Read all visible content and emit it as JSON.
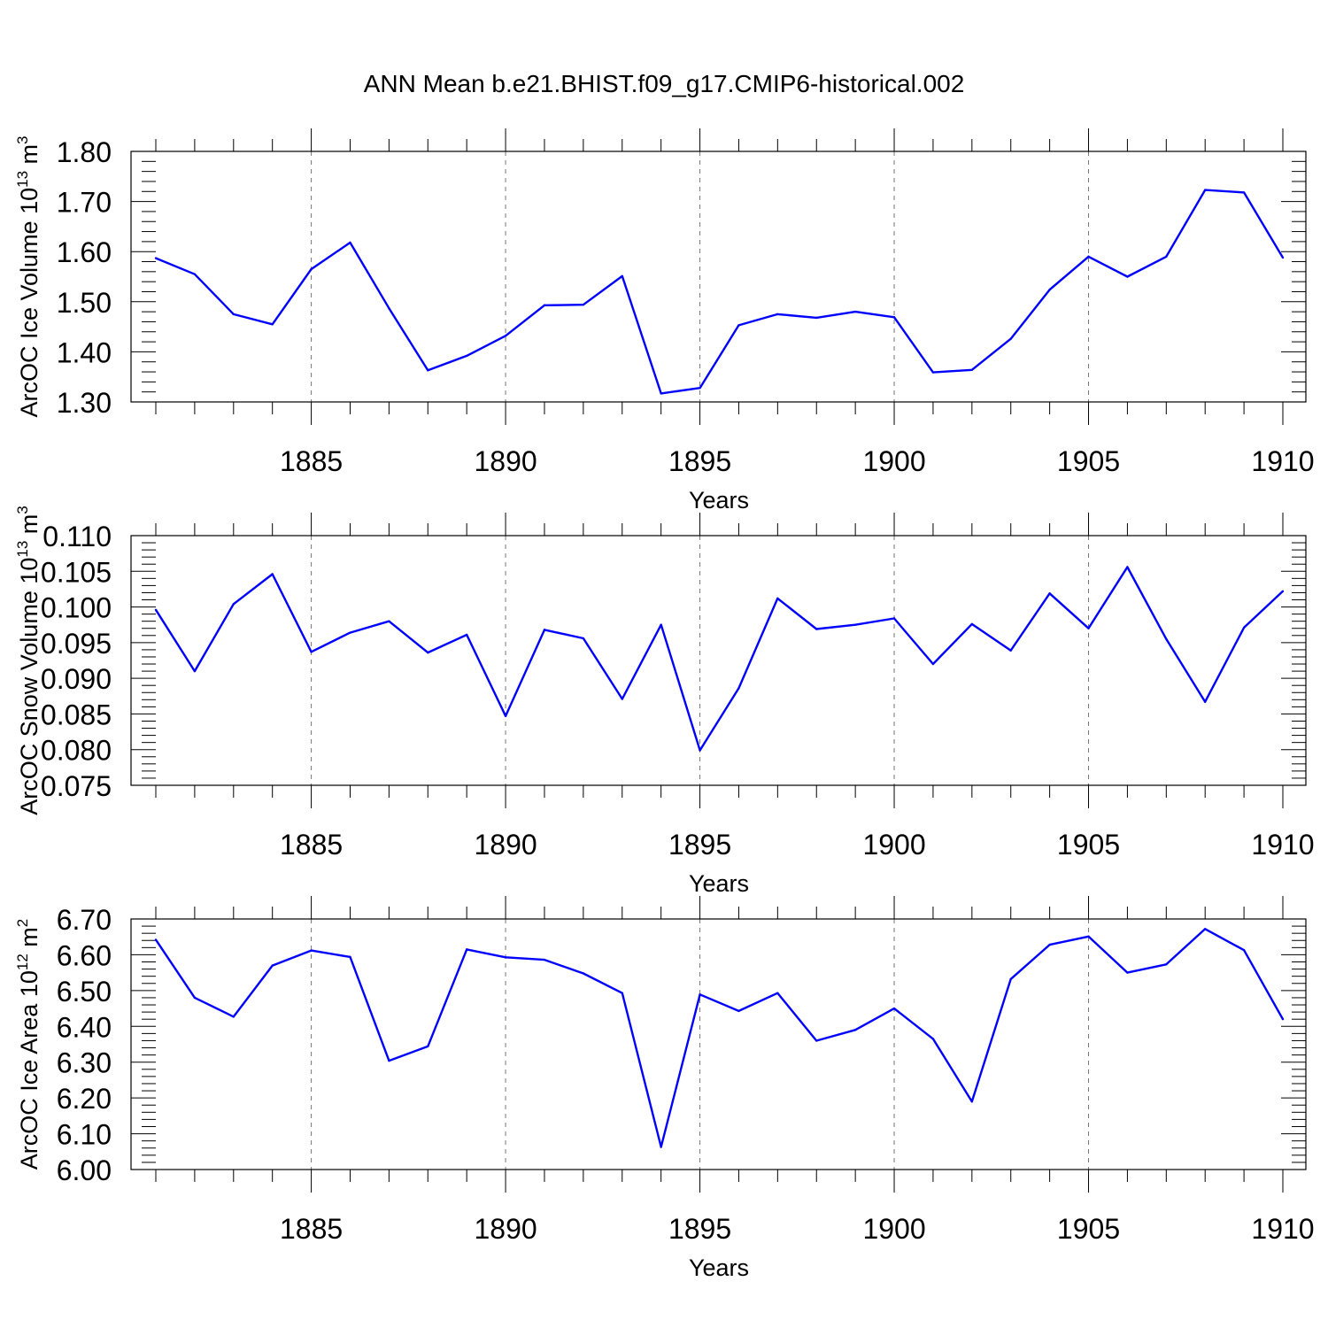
{
  "title": "ANN Mean b.e21.BHIST.f09_g17.CMIP6-historical.002",
  "series_color": "#0000ff",
  "chart_data": [
    {
      "type": "line",
      "title": "",
      "xlabel": "Years",
      "ylabel": {
        "text": "ArcOC Ice Volume 10",
        "sup": "13",
        "unit": " m",
        "unit_sup": "3"
      },
      "x": [
        1881,
        1882,
        1883,
        1884,
        1885,
        1886,
        1887,
        1888,
        1889,
        1890,
        1891,
        1892,
        1893,
        1894,
        1895,
        1896,
        1897,
        1898,
        1899,
        1900,
        1901,
        1902,
        1903,
        1904,
        1905,
        1906,
        1907,
        1908,
        1909,
        1910
      ],
      "values": [
        1.587,
        1.555,
        1.475,
        1.455,
        1.565,
        1.618,
        1.487,
        1.363,
        1.392,
        1.432,
        1.493,
        1.494,
        1.551,
        1.317,
        1.328,
        1.453,
        1.475,
        1.468,
        1.48,
        1.469,
        1.359,
        1.364,
        1.426,
        1.524,
        1.59,
        1.55,
        1.59,
        1.723,
        1.718,
        1.588
      ],
      "xlim": [
        1881,
        1910
      ],
      "ylim": [
        1.3,
        1.8
      ],
      "x_ticks": [
        "1885",
        "1890",
        "1895",
        "1900",
        "1905",
        "1910"
      ],
      "y_ticks": [
        "1.30",
        "1.40",
        "1.50",
        "1.60",
        "1.70",
        "1.80"
      ]
    },
    {
      "type": "line",
      "title": "",
      "xlabel": "Years",
      "ylabel": {
        "text": "ArcOC Snow Volume 10",
        "sup": "13",
        "unit": " m",
        "unit_sup": "3"
      },
      "x": [
        1881,
        1882,
        1883,
        1884,
        1885,
        1886,
        1887,
        1888,
        1889,
        1890,
        1891,
        1892,
        1893,
        1894,
        1895,
        1896,
        1897,
        1898,
        1899,
        1900,
        1901,
        1902,
        1903,
        1904,
        1905,
        1906,
        1907,
        1908,
        1909,
        1910
      ],
      "values": [
        0.0996,
        0.091,
        0.1004,
        0.1046,
        0.0937,
        0.0964,
        0.098,
        0.0936,
        0.0961,
        0.0847,
        0.0968,
        0.0956,
        0.0871,
        0.0975,
        0.0799,
        0.0886,
        0.1012,
        0.0969,
        0.0975,
        0.0984,
        0.092,
        0.0976,
        0.0939,
        0.1019,
        0.097,
        0.1056,
        0.0955,
        0.0867,
        0.0971,
        0.1022
      ],
      "xlim": [
        1881,
        1910
      ],
      "ylim": [
        0.075,
        0.11
      ],
      "x_ticks": [
        "1885",
        "1890",
        "1895",
        "1900",
        "1905",
        "1910"
      ],
      "y_ticks": [
        "0.075",
        "0.080",
        "0.085",
        "0.090",
        "0.095",
        "0.100",
        "0.105",
        "0.110"
      ]
    },
    {
      "type": "line",
      "title": "",
      "xlabel": "Years",
      "ylabel": {
        "text": "ArcOC Ice Area 10",
        "sup": "12",
        "unit": " m",
        "unit_sup": "2"
      },
      "x": [
        1881,
        1882,
        1883,
        1884,
        1885,
        1886,
        1887,
        1888,
        1889,
        1890,
        1891,
        1892,
        1893,
        1894,
        1895,
        1896,
        1897,
        1898,
        1899,
        1900,
        1901,
        1902,
        1903,
        1904,
        1905,
        1906,
        1907,
        1908,
        1909,
        1910
      ],
      "values": [
        6.642,
        6.48,
        6.427,
        6.57,
        6.612,
        6.594,
        6.304,
        6.344,
        6.615,
        6.593,
        6.586,
        6.548,
        6.493,
        6.063,
        6.489,
        6.443,
        6.493,
        6.36,
        6.39,
        6.45,
        6.365,
        6.19,
        6.532,
        6.628,
        6.651,
        6.55,
        6.573,
        6.672,
        6.613,
        6.42
      ],
      "xlim": [
        1881,
        1910
      ],
      "ylim": [
        6.0,
        6.7
      ],
      "x_ticks": [
        "1885",
        "1890",
        "1895",
        "1900",
        "1905",
        "1910"
      ],
      "y_ticks": [
        "6.00",
        "6.10",
        "6.20",
        "6.30",
        "6.40",
        "6.50",
        "6.60",
        "6.70"
      ]
    }
  ]
}
